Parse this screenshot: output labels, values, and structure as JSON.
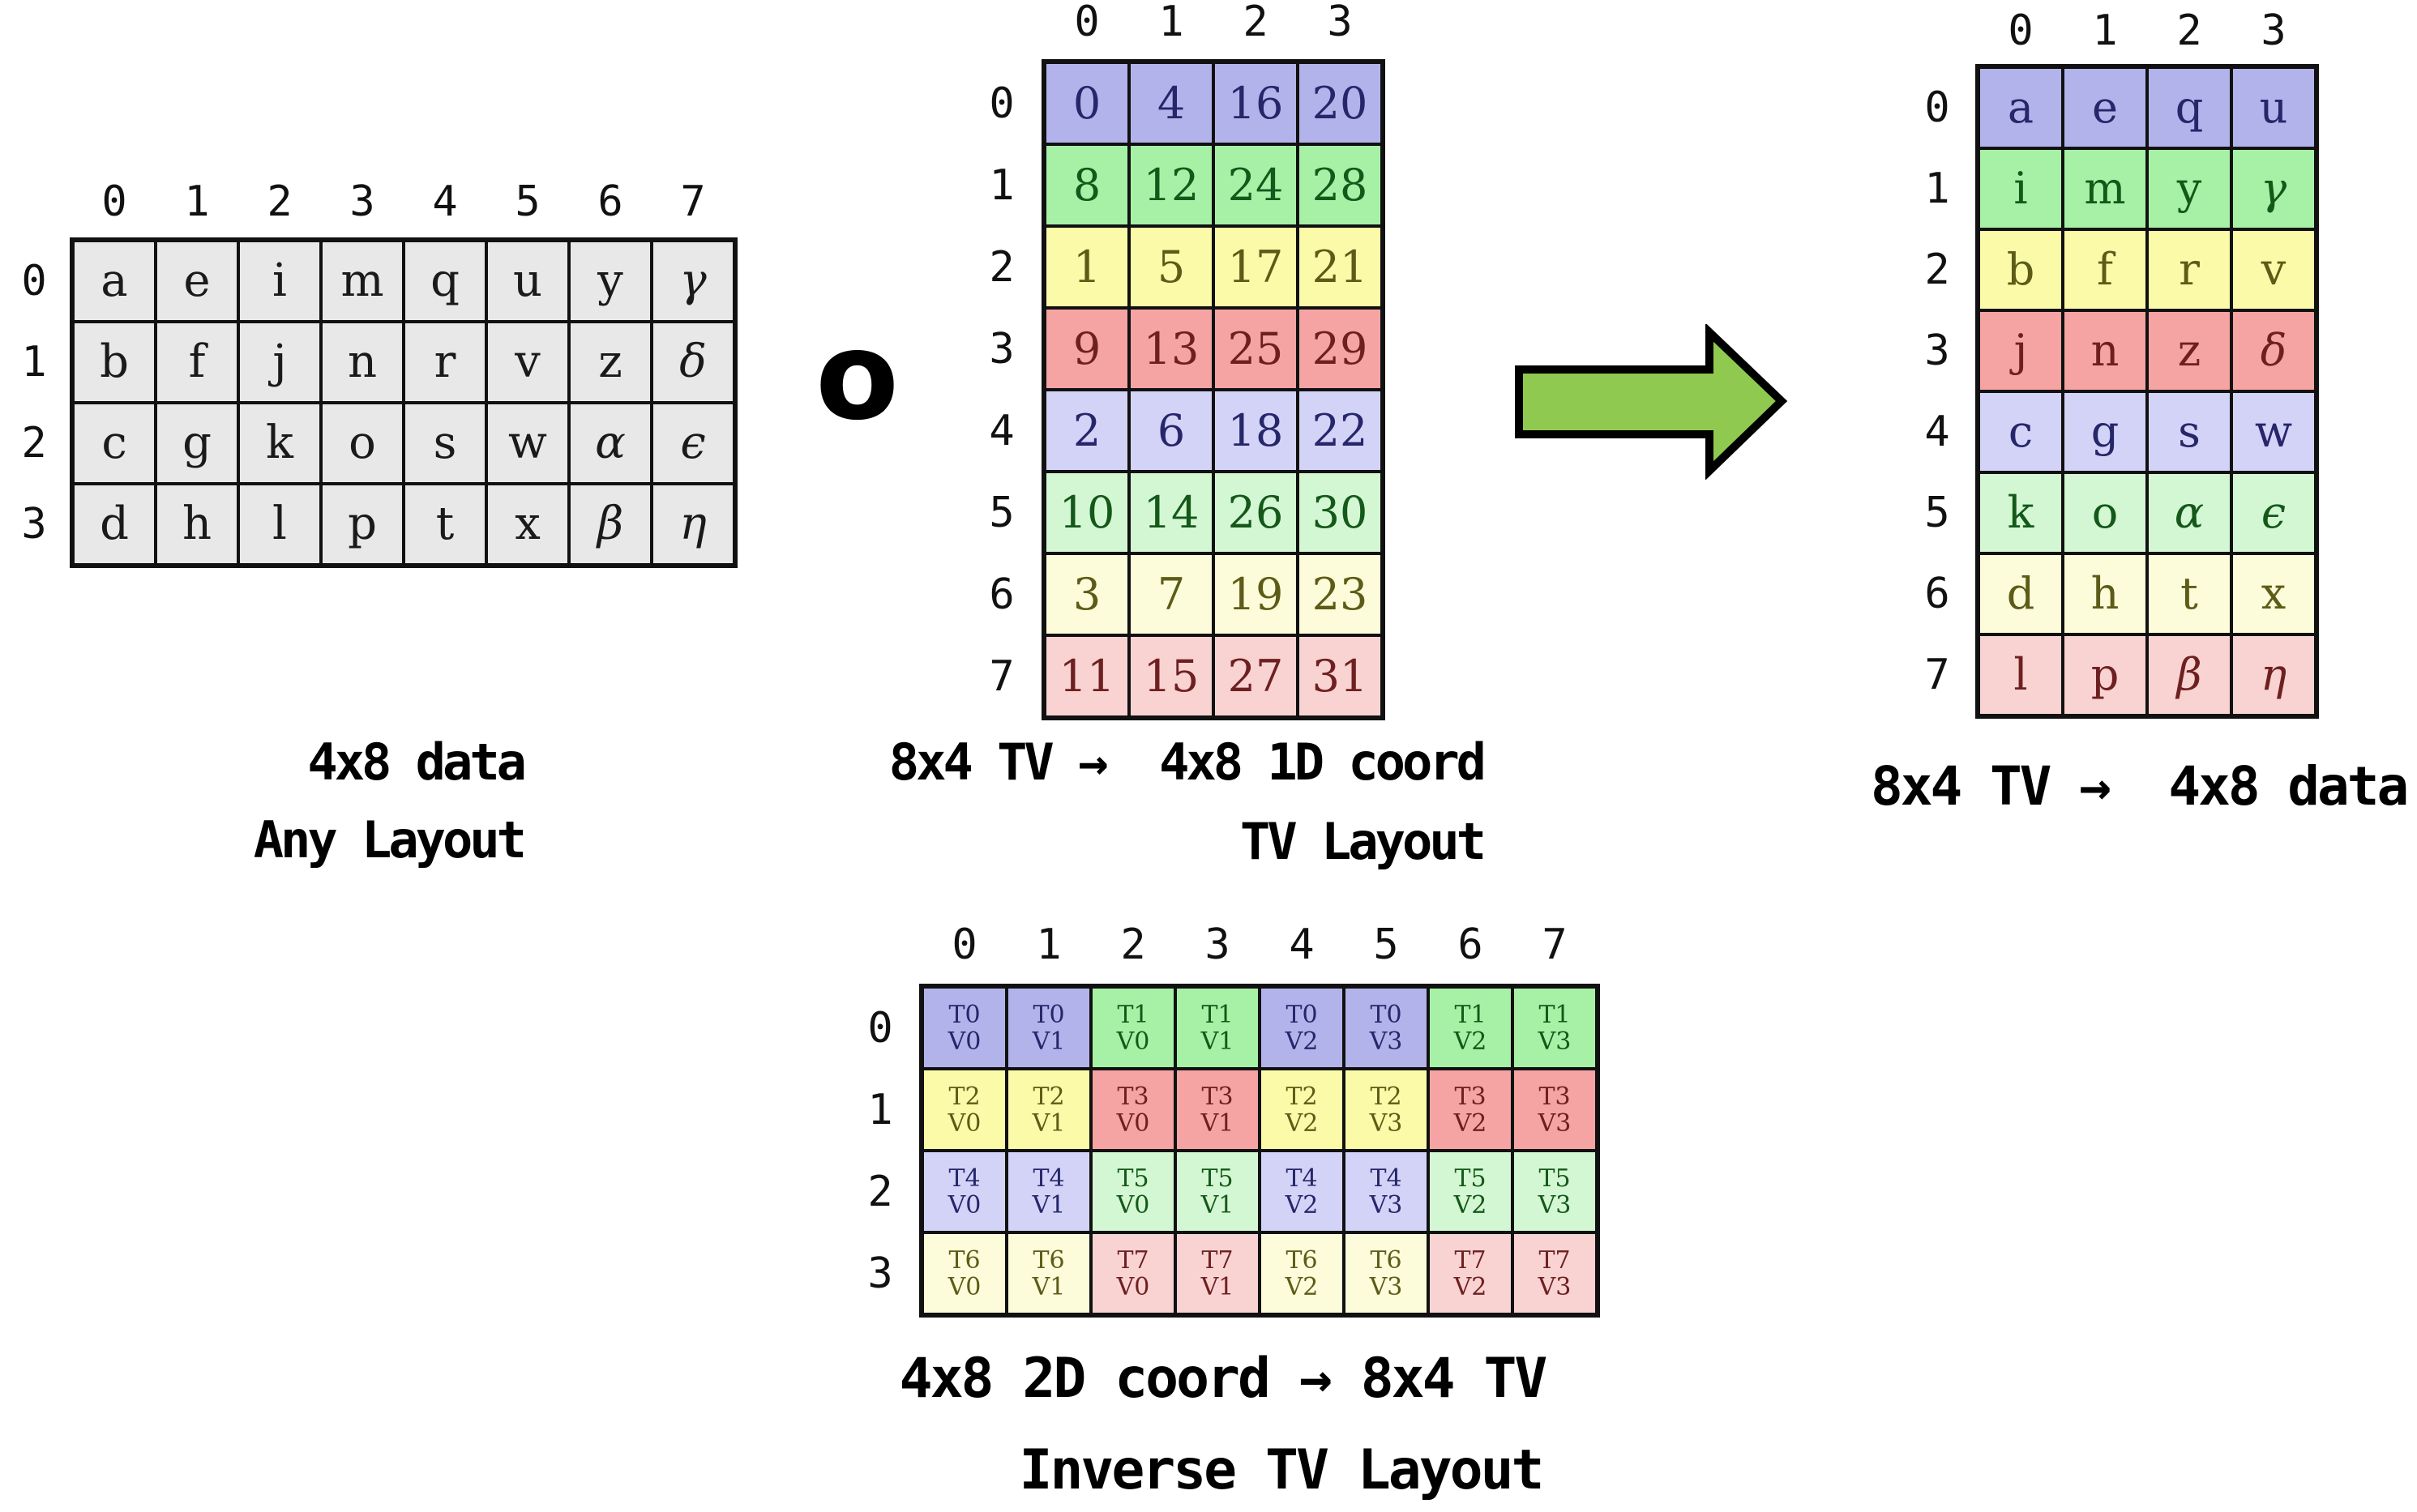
{
  "palette": {
    "bg": {
      "grey": "#e8e8e8",
      "blue": "#b3b3ec",
      "green": "#a6f1a6",
      "yellow": "#fafaa8",
      "red": "#f5a3a3",
      "blue_light": "#d3d3f8",
      "green_light": "#d3f7d3",
      "yellow_light": "#fcfcda",
      "red_light": "#f9d2d2"
    },
    "text": {
      "grey": "#1a1a1a",
      "blue": "#26266a",
      "green": "#14581a",
      "yellow": "#5c5c18",
      "red": "#6e2020"
    },
    "border": "#111111",
    "arrow_fill": "#90c94f",
    "arrow_stroke": "#000000"
  },
  "operator": {
    "symbol": "o"
  },
  "grids": {
    "any_layout": {
      "col_headers": [
        "0",
        "1",
        "2",
        "3",
        "4",
        "5",
        "6",
        "7"
      ],
      "row_headers": [
        "0",
        "1",
        "2",
        "3"
      ],
      "bg": "grey",
      "cells": [
        [
          "a",
          "e",
          "i",
          "m",
          "q",
          "u",
          "y",
          "γ"
        ],
        [
          "b",
          "f",
          "j",
          "n",
          "r",
          "v",
          "z",
          "δ"
        ],
        [
          "c",
          "g",
          "k",
          "o",
          "s",
          "w",
          "α",
          "ϵ"
        ],
        [
          "d",
          "h",
          "l",
          "p",
          "t",
          "x",
          "β",
          "η"
        ]
      ],
      "caption1": "4x8 data",
      "caption2": "Any Layout"
    },
    "tv_layout": {
      "col_headers": [
        "0",
        "1",
        "2",
        "3"
      ],
      "row_headers": [
        "0",
        "1",
        "2",
        "3",
        "4",
        "5",
        "6",
        "7"
      ],
      "row_bg": [
        "blue",
        "green",
        "yellow",
        "red",
        "blue_light",
        "green_light",
        "yellow_light",
        "red_light"
      ],
      "cells": [
        [
          "0",
          "4",
          "16",
          "20"
        ],
        [
          "8",
          "12",
          "24",
          "28"
        ],
        [
          "1",
          "5",
          "17",
          "21"
        ],
        [
          "9",
          "13",
          "25",
          "29"
        ],
        [
          "2",
          "6",
          "18",
          "22"
        ],
        [
          "10",
          "14",
          "26",
          "30"
        ],
        [
          "3",
          "7",
          "19",
          "23"
        ],
        [
          "11",
          "15",
          "27",
          "31"
        ]
      ],
      "caption1": "8x4 TV →  4x8 1D coord",
      "caption2": "TV Layout"
    },
    "tv_data": {
      "col_headers": [
        "0",
        "1",
        "2",
        "3"
      ],
      "row_headers": [
        "0",
        "1",
        "2",
        "3",
        "4",
        "5",
        "6",
        "7"
      ],
      "row_bg": [
        "blue",
        "green",
        "yellow",
        "red",
        "blue_light",
        "green_light",
        "yellow_light",
        "red_light"
      ],
      "cells": [
        [
          "a",
          "e",
          "q",
          "u"
        ],
        [
          "i",
          "m",
          "y",
          "γ"
        ],
        [
          "b",
          "f",
          "r",
          "v"
        ],
        [
          "j",
          "n",
          "z",
          "δ"
        ],
        [
          "c",
          "g",
          "s",
          "w"
        ],
        [
          "k",
          "o",
          "α",
          "ϵ"
        ],
        [
          "d",
          "h",
          "t",
          "x"
        ],
        [
          "l",
          "p",
          "β",
          "η"
        ]
      ],
      "caption1": "8x4 TV →  4x8 data"
    },
    "inverse_tv": {
      "col_headers": [
        "0",
        "1",
        "2",
        "3",
        "4",
        "5",
        "6",
        "7"
      ],
      "row_headers": [
        "0",
        "1",
        "2",
        "3"
      ],
      "cell_bg": [
        [
          "blue",
          "blue",
          "green",
          "green",
          "blue",
          "blue",
          "green",
          "green"
        ],
        [
          "yellow",
          "yellow",
          "red",
          "red",
          "yellow",
          "yellow",
          "red",
          "red"
        ],
        [
          "blue_light",
          "blue_light",
          "green_light",
          "green_light",
          "blue_light",
          "blue_light",
          "green_light",
          "green_light"
        ],
        [
          "yellow_light",
          "yellow_light",
          "red_light",
          "red_light",
          "yellow_light",
          "yellow_light",
          "red_light",
          "red_light"
        ]
      ],
      "cells": [
        [
          "T0\nV0",
          "T0\nV1",
          "T1\nV0",
          "T1\nV1",
          "T0\nV2",
          "T0\nV3",
          "T1\nV2",
          "T1\nV3"
        ],
        [
          "T2\nV0",
          "T2\nV1",
          "T3\nV0",
          "T3\nV1",
          "T2\nV2",
          "T2\nV3",
          "T3\nV2",
          "T3\nV3"
        ],
        [
          "T4\nV0",
          "T4\nV1",
          "T5\nV0",
          "T5\nV1",
          "T4\nV2",
          "T4\nV3",
          "T5\nV2",
          "T5\nV3"
        ],
        [
          "T6\nV0",
          "T6\nV1",
          "T7\nV0",
          "T7\nV1",
          "T6\nV2",
          "T6\nV3",
          "T7\nV2",
          "T7\nV3"
        ]
      ],
      "caption1": "4x8 2D coord → 8x4 TV",
      "caption2": "Inverse TV Layout"
    }
  }
}
